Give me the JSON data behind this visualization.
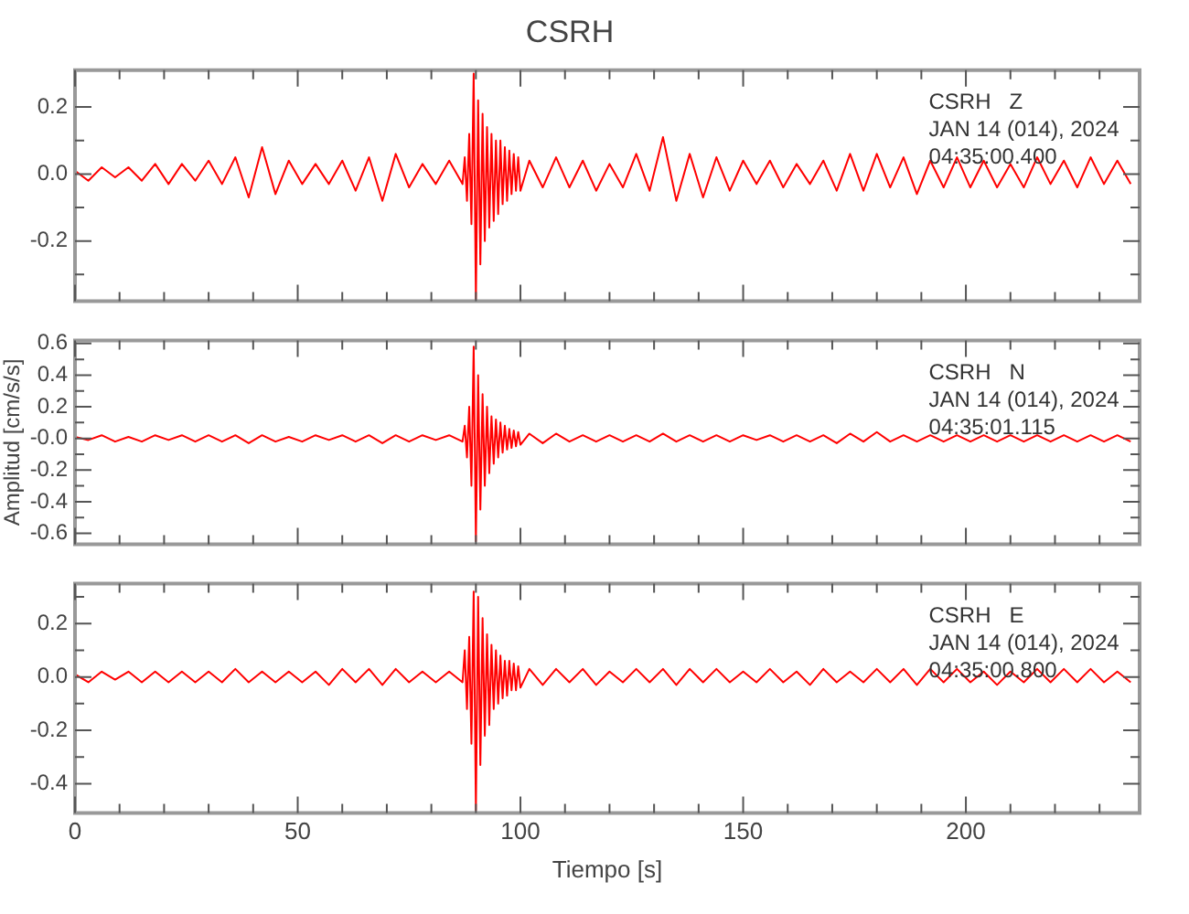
{
  "chart_data": [
    {
      "type": "line",
      "title": "CSRH",
      "annotations": [
        "CSRH   Z",
        "JAN 14 (014), 2024",
        "04:35:00.400"
      ],
      "tick_labels": "y",
      "x": [
        0,
        3,
        6,
        9,
        12,
        15,
        18,
        21,
        24,
        27,
        30,
        33,
        36,
        39,
        42,
        45,
        48,
        51,
        54,
        57,
        60,
        63,
        66,
        69,
        72,
        75,
        78,
        81,
        84,
        87,
        87.5,
        88,
        88.5,
        89,
        89.5,
        90,
        90.5,
        91,
        91.5,
        92,
        92.5,
        93,
        93.5,
        94,
        94.5,
        95,
        95.5,
        96,
        96.5,
        97,
        97.5,
        98,
        98.5,
        99,
        99.5,
        100,
        102,
        105,
        108,
        111,
        114,
        117,
        120,
        123,
        126,
        129,
        132,
        135,
        138,
        141,
        144,
        147,
        150,
        153,
        156,
        159,
        162,
        165,
        168,
        171,
        174,
        177,
        180,
        183,
        186,
        189,
        192,
        195,
        198,
        201,
        204,
        207,
        210,
        213,
        216,
        219,
        222,
        225,
        228,
        231,
        234,
        237
      ],
      "series": [
        {
          "color": "#ff0000",
          "values": [
            0.01,
            -0.02,
            0.02,
            -0.01,
            0.02,
            -0.02,
            0.03,
            -0.03,
            0.03,
            -0.02,
            0.04,
            -0.03,
            0.05,
            -0.07,
            0.08,
            -0.06,
            0.04,
            -0.03,
            0.03,
            -0.03,
            0.04,
            -0.05,
            0.05,
            -0.08,
            0.06,
            -0.04,
            0.03,
            -0.03,
            0.04,
            -0.03,
            0.05,
            -0.08,
            0.12,
            -0.15,
            0.3,
            -0.38,
            0.22,
            -0.27,
            0.18,
            -0.2,
            0.14,
            -0.16,
            0.12,
            -0.14,
            0.1,
            -0.12,
            0.1,
            -0.09,
            0.08,
            -0.08,
            0.07,
            -0.06,
            0.06,
            -0.05,
            0.05,
            -0.05,
            0.04,
            -0.04,
            0.05,
            -0.04,
            0.04,
            -0.05,
            0.03,
            -0.04,
            0.06,
            -0.05,
            0.11,
            -0.08,
            0.06,
            -0.07,
            0.05,
            -0.05,
            0.04,
            -0.03,
            0.04,
            -0.04,
            0.03,
            -0.03,
            0.04,
            -0.05,
            0.06,
            -0.05,
            0.06,
            -0.04,
            0.05,
            -0.06,
            0.04,
            -0.04,
            0.05,
            -0.04,
            0.04,
            -0.04,
            0.03,
            -0.04,
            0.05,
            -0.03,
            0.04,
            -0.04,
            0.05,
            -0.03,
            0.04,
            -0.03
          ]
        }
      ],
      "xlim": [
        0,
        239
      ],
      "xticks": [
        0,
        {
          "value": 10,
          "label": null
        },
        {
          "value": 20,
          "label": null
        },
        {
          "value": 30,
          "label": null
        },
        {
          "value": 40,
          "label": null
        },
        50,
        {
          "value": 60,
          "label": null
        },
        {
          "value": 70,
          "label": null
        },
        {
          "value": 80,
          "label": null
        },
        {
          "value": 90,
          "label": null
        },
        100,
        {
          "value": 110,
          "label": null
        },
        {
          "value": 120,
          "label": null
        },
        {
          "value": 130,
          "label": null
        },
        {
          "value": 140,
          "label": null
        },
        150,
        {
          "value": 160,
          "label": null
        },
        {
          "value": 170,
          "label": null
        },
        {
          "value": 180,
          "label": null
        },
        {
          "value": 190,
          "label": null
        },
        200,
        {
          "value": 210,
          "label": null
        },
        {
          "value": 220,
          "label": null
        },
        {
          "value": 230,
          "label": null
        }
      ],
      "ylim": [
        -0.38,
        0.31
      ],
      "yticks": [
        {
          "value": -0.3,
          "label": null
        },
        {
          "value": -0.2,
          "label": "-0.2"
        },
        {
          "value": -0.1,
          "label": null
        },
        {
          "value": 0,
          "label": "0.0"
        },
        {
          "value": 0.1,
          "label": null
        },
        {
          "value": 0.2,
          "label": "0.2"
        }
      ]
    },
    {
      "type": "line",
      "ylabel": "Amplitud [cm/s/s]",
      "annotations": [
        "CSRH   N",
        "JAN 14 (014), 2024",
        "04:35:01.115"
      ],
      "tick_labels": "y",
      "x": [
        0,
        3,
        6,
        9,
        12,
        15,
        18,
        21,
        24,
        27,
        30,
        33,
        36,
        39,
        42,
        45,
        48,
        51,
        54,
        57,
        60,
        63,
        66,
        69,
        72,
        75,
        78,
        81,
        84,
        87,
        87.5,
        88,
        88.5,
        89,
        89.5,
        90,
        90.5,
        91,
        91.5,
        92,
        92.5,
        93,
        93.5,
        94,
        94.5,
        95,
        95.5,
        96,
        96.5,
        97,
        97.5,
        98,
        98.5,
        99,
        99.5,
        100,
        102,
        105,
        108,
        111,
        114,
        117,
        120,
        123,
        126,
        129,
        132,
        135,
        138,
        141,
        144,
        147,
        150,
        153,
        156,
        159,
        162,
        165,
        168,
        171,
        174,
        177,
        180,
        183,
        186,
        189,
        192,
        195,
        198,
        201,
        204,
        207,
        210,
        213,
        216,
        219,
        222,
        225,
        228,
        231,
        234,
        237
      ],
      "series": [
        {
          "color": "#ff0000",
          "values": [
            0.01,
            -0.01,
            0.02,
            -0.02,
            0.01,
            -0.02,
            0.02,
            -0.01,
            0.02,
            -0.02,
            0.02,
            -0.02,
            0.02,
            -0.03,
            0.02,
            -0.02,
            0.01,
            -0.02,
            0.02,
            -0.01,
            0.02,
            -0.02,
            0.02,
            -0.03,
            0.02,
            -0.02,
            0.02,
            -0.01,
            0.02,
            -0.02,
            0.08,
            -0.12,
            0.2,
            -0.3,
            0.58,
            -0.65,
            0.4,
            -0.45,
            0.28,
            -0.3,
            0.2,
            -0.22,
            0.14,
            -0.16,
            0.12,
            -0.12,
            0.1,
            -0.09,
            0.08,
            -0.07,
            0.06,
            -0.06,
            0.05,
            -0.05,
            0.04,
            -0.04,
            0.03,
            -0.03,
            0.03,
            -0.02,
            0.02,
            -0.02,
            0.02,
            -0.02,
            0.02,
            -0.02,
            0.03,
            -0.02,
            0.02,
            -0.02,
            0.02,
            -0.02,
            0.02,
            -0.01,
            0.02,
            -0.02,
            0.02,
            -0.02,
            0.02,
            -0.03,
            0.03,
            -0.02,
            0.04,
            -0.02,
            0.02,
            -0.02,
            0.02,
            -0.02,
            0.02,
            -0.02,
            0.02,
            -0.02,
            0.02,
            -0.02,
            0.02,
            -0.02,
            0.02,
            -0.02,
            0.02,
            -0.02,
            0.02,
            -0.02
          ]
        }
      ],
      "xlim": [
        0,
        239
      ],
      "xticks": [
        0,
        {
          "value": 10,
          "label": null
        },
        {
          "value": 20,
          "label": null
        },
        {
          "value": 30,
          "label": null
        },
        {
          "value": 40,
          "label": null
        },
        50,
        {
          "value": 60,
          "label": null
        },
        {
          "value": 70,
          "label": null
        },
        {
          "value": 80,
          "label": null
        },
        {
          "value": 90,
          "label": null
        },
        100,
        {
          "value": 110,
          "label": null
        },
        {
          "value": 120,
          "label": null
        },
        {
          "value": 130,
          "label": null
        },
        {
          "value": 140,
          "label": null
        },
        150,
        {
          "value": 160,
          "label": null
        },
        {
          "value": 170,
          "label": null
        },
        {
          "value": 180,
          "label": null
        },
        {
          "value": 190,
          "label": null
        },
        200,
        {
          "value": 210,
          "label": null
        },
        {
          "value": 220,
          "label": null
        },
        {
          "value": 230,
          "label": null
        }
      ],
      "ylim": [
        -0.67,
        0.62
      ],
      "yticks": [
        {
          "value": -0.6,
          "label": "-0.6"
        },
        {
          "value": -0.5,
          "label": null
        },
        {
          "value": -0.4,
          "label": "-0.4"
        },
        {
          "value": -0.3,
          "label": null
        },
        {
          "value": -0.2,
          "label": "-0.2"
        },
        {
          "value": -0.1,
          "label": null
        },
        {
          "value": 0,
          "label": "-0.0"
        },
        {
          "value": 0.1,
          "label": null
        },
        {
          "value": 0.2,
          "label": "0.2"
        },
        {
          "value": 0.3,
          "label": null
        },
        {
          "value": 0.4,
          "label": "0.4"
        },
        {
          "value": 0.5,
          "label": null
        },
        {
          "value": 0.6,
          "label": "0.6"
        }
      ]
    },
    {
      "type": "line",
      "xlabel": "Tiempo [s]",
      "annotations": [
        "CSRH   E",
        "JAN 14 (014), 2024",
        "04:35:00.800"
      ],
      "x": [
        0,
        3,
        6,
        9,
        12,
        15,
        18,
        21,
        24,
        27,
        30,
        33,
        36,
        39,
        42,
        45,
        48,
        51,
        54,
        57,
        60,
        63,
        66,
        69,
        72,
        75,
        78,
        81,
        84,
        87,
        87.5,
        88,
        88.5,
        89,
        89.5,
        90,
        90.5,
        91,
        91.5,
        92,
        92.5,
        93,
        93.5,
        94,
        94.5,
        95,
        95.5,
        96,
        96.5,
        97,
        97.5,
        98,
        98.5,
        99,
        99.5,
        100,
        102,
        105,
        108,
        111,
        114,
        117,
        120,
        123,
        126,
        129,
        132,
        135,
        138,
        141,
        144,
        147,
        150,
        153,
        156,
        159,
        162,
        165,
        168,
        171,
        174,
        177,
        180,
        183,
        186,
        189,
        192,
        195,
        198,
        201,
        204,
        207,
        210,
        213,
        216,
        219,
        222,
        225,
        228,
        231,
        234,
        237
      ],
      "series": [
        {
          "color": "#ff0000",
          "values": [
            0.01,
            -0.02,
            0.02,
            -0.01,
            0.02,
            -0.02,
            0.02,
            -0.02,
            0.02,
            -0.02,
            0.02,
            -0.02,
            0.03,
            -0.02,
            0.02,
            -0.02,
            0.02,
            -0.02,
            0.02,
            -0.03,
            0.03,
            -0.02,
            0.03,
            -0.03,
            0.03,
            -0.02,
            0.02,
            -0.02,
            0.02,
            -0.02,
            0.1,
            -0.12,
            0.15,
            -0.25,
            0.32,
            -0.5,
            0.3,
            -0.33,
            0.22,
            -0.22,
            0.16,
            -0.18,
            0.12,
            -0.12,
            0.1,
            -0.1,
            0.08,
            -0.08,
            0.06,
            -0.07,
            0.06,
            -0.05,
            0.05,
            -0.05,
            0.04,
            -0.04,
            0.03,
            -0.03,
            0.03,
            -0.02,
            0.03,
            -0.03,
            0.02,
            -0.02,
            0.03,
            -0.02,
            0.03,
            -0.03,
            0.03,
            -0.02,
            0.03,
            -0.02,
            0.02,
            -0.02,
            0.03,
            -0.02,
            0.02,
            -0.03,
            0.03,
            -0.02,
            0.02,
            -0.02,
            0.03,
            -0.02,
            0.03,
            -0.03,
            0.03,
            -0.02,
            0.03,
            -0.02,
            0.02,
            -0.03,
            0.02,
            -0.02,
            0.03,
            -0.02,
            0.03,
            -0.02,
            0.03,
            -0.02,
            0.02,
            -0.02
          ]
        }
      ],
      "xlim": [
        0,
        239
      ],
      "xticks": [
        0,
        {
          "value": 10,
          "label": null
        },
        {
          "value": 20,
          "label": null
        },
        {
          "value": 30,
          "label": null
        },
        {
          "value": 40,
          "label": null
        },
        50,
        {
          "value": 60,
          "label": null
        },
        {
          "value": 70,
          "label": null
        },
        {
          "value": 80,
          "label": null
        },
        {
          "value": 90,
          "label": null
        },
        100,
        {
          "value": 110,
          "label": null
        },
        {
          "value": 120,
          "label": null
        },
        {
          "value": 130,
          "label": null
        },
        {
          "value": 140,
          "label": null
        },
        150,
        {
          "value": 160,
          "label": null
        },
        {
          "value": 170,
          "label": null
        },
        {
          "value": 180,
          "label": null
        },
        {
          "value": 190,
          "label": null
        },
        200,
        {
          "value": 210,
          "label": null
        },
        {
          "value": 220,
          "label": null
        },
        {
          "value": 230,
          "label": null
        }
      ],
      "ylim": [
        -0.51,
        0.35
      ],
      "yticks": [
        {
          "value": -0.4,
          "label": "-0.4"
        },
        {
          "value": -0.3,
          "label": null
        },
        {
          "value": -0.2,
          "label": "-0.2"
        },
        {
          "value": -0.1,
          "label": null
        },
        {
          "value": 0,
          "label": "0.0"
        },
        {
          "value": 0.1,
          "label": null
        },
        {
          "value": 0.2,
          "label": "0.2"
        },
        {
          "value": 0.3,
          "label": null
        }
      ]
    }
  ]
}
